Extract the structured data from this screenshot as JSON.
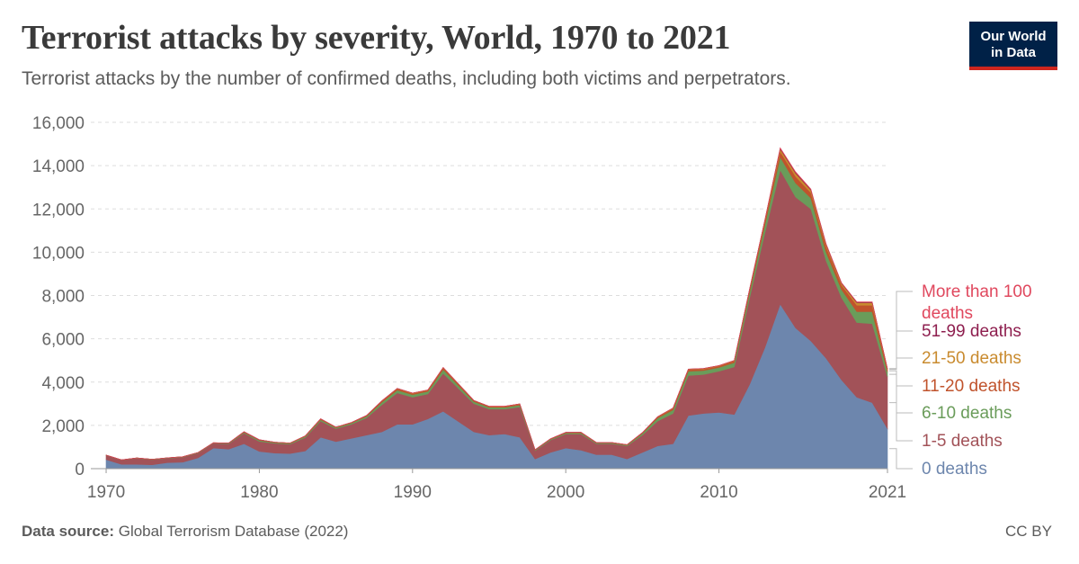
{
  "header": {
    "title": "Terrorist attacks by severity, World, 1970 to 2021",
    "subtitle": "Terrorist attacks by the number of confirmed deaths, including both victims and perpetrators."
  },
  "logo": {
    "line1": "Our World",
    "line2": "in Data"
  },
  "footer": {
    "source_label": "Data source:",
    "source_text": "Global Terrorism Database (2022)",
    "license": "CC BY"
  },
  "colors": {
    "0 deaths": "#6d86ad",
    "1-5 deaths": "#a25258",
    "6-10 deaths": "#6a9c5a",
    "11-20 deaths": "#c0532c",
    "21-50 deaths": "#c98b2f",
    "51-99 deaths": "#8e1f4f",
    "More than 100 deaths": "#e0485e"
  },
  "chart_data": {
    "type": "area",
    "stacked": true,
    "x": [
      1970,
      1971,
      1972,
      1973,
      1974,
      1975,
      1976,
      1977,
      1978,
      1979,
      1980,
      1981,
      1982,
      1983,
      1984,
      1985,
      1986,
      1987,
      1988,
      1989,
      1990,
      1991,
      1992,
      1994,
      1995,
      1996,
      1997,
      1998,
      1999,
      2000,
      2001,
      2002,
      2003,
      2004,
      2005,
      2006,
      2007,
      2008,
      2009,
      2010,
      2011,
      2012,
      2013,
      2014,
      2015,
      2016,
      2017,
      2018,
      2019,
      2020,
      2021
    ],
    "x_ticks": [
      "1970",
      "1980",
      "1990",
      "2000",
      "2010",
      "2021"
    ],
    "y_ticks": [
      "0",
      "2,000",
      "4,000",
      "6,000",
      "8,000",
      "10,000",
      "12,000",
      "14,000",
      "16,000"
    ],
    "ylim": [
      0,
      16000
    ],
    "xlim": [
      1969,
      2021
    ],
    "grid": "horizontal dashed",
    "legend_position": "right",
    "series": [
      {
        "name": "0 deaths",
        "values": [
          420,
          200,
          200,
          180,
          280,
          300,
          500,
          950,
          900,
          1150,
          800,
          720,
          700,
          820,
          1450,
          1250,
          1400,
          1550,
          1700,
          2050,
          2050,
          2300,
          2650,
          1700,
          1550,
          1600,
          1450,
          450,
          750,
          950,
          850,
          650,
          650,
          450,
          750,
          1050,
          1150,
          2450,
          2550,
          2600,
          2500,
          3900,
          5600,
          7600,
          6500,
          5900,
          5100,
          4100,
          3300,
          3050,
          1850
        ]
      },
      {
        "name": "1-5 deaths",
        "values": [
          200,
          200,
          280,
          240,
          200,
          230,
          220,
          220,
          250,
          490,
          460,
          450,
          430,
          620,
          750,
          600,
          650,
          800,
          1250,
          1450,
          1250,
          1150,
          1750,
          1300,
          1200,
          1150,
          1400,
          380,
          570,
          650,
          750,
          500,
          500,
          600,
          800,
          1150,
          1400,
          1850,
          1800,
          1900,
          2200,
          4000,
          5300,
          6200,
          6050,
          6100,
          4500,
          3800,
          3450,
          3650,
          2400
        ]
      },
      {
        "name": "6-10 deaths",
        "values": [
          5,
          5,
          10,
          10,
          15,
          15,
          20,
          20,
          25,
          40,
          50,
          35,
          35,
          50,
          65,
          45,
          55,
          70,
          120,
          130,
          120,
          120,
          180,
          100,
          85,
          85,
          90,
          30,
          40,
          50,
          55,
          40,
          40,
          40,
          80,
          140,
          170,
          200,
          180,
          180,
          200,
          250,
          380,
          600,
          650,
          500,
          400,
          380,
          500,
          550,
          220
        ]
      },
      {
        "name": "11-20 deaths",
        "values": [
          2,
          2,
          4,
          4,
          5,
          5,
          6,
          6,
          8,
          20,
          20,
          15,
          15,
          20,
          30,
          20,
          20,
          30,
          50,
          60,
          55,
          50,
          70,
          40,
          35,
          35,
          40,
          10,
          15,
          20,
          20,
          15,
          15,
          15,
          25,
          45,
          60,
          70,
          70,
          60,
          70,
          110,
          150,
          250,
          300,
          250,
          250,
          200,
          300,
          300,
          100
        ]
      },
      {
        "name": "21-50 deaths",
        "values": [
          0,
          0,
          1,
          1,
          2,
          2,
          2,
          2,
          3,
          5,
          6,
          4,
          4,
          6,
          8,
          6,
          6,
          8,
          15,
          18,
          15,
          15,
          20,
          12,
          10,
          10,
          12,
          4,
          5,
          6,
          6,
          5,
          5,
          5,
          8,
          15,
          20,
          25,
          25,
          20,
          25,
          40,
          60,
          120,
          150,
          120,
          100,
          80,
          120,
          120,
          40
        ]
      },
      {
        "name": "51-99 deaths",
        "values": [
          0,
          0,
          0,
          0,
          0,
          0,
          0,
          0,
          0,
          1,
          1,
          1,
          1,
          1,
          2,
          1,
          1,
          2,
          3,
          3,
          3,
          3,
          4,
          3,
          2,
          2,
          3,
          1,
          1,
          1,
          1,
          1,
          1,
          1,
          2,
          3,
          4,
          5,
          5,
          4,
          5,
          8,
          15,
          35,
          40,
          30,
          25,
          20,
          25,
          25,
          10
        ]
      },
      {
        "name": "More than 100 deaths",
        "values": [
          0,
          0,
          0,
          0,
          0,
          0,
          0,
          0,
          0,
          0,
          0,
          0,
          0,
          0,
          1,
          0,
          0,
          1,
          1,
          1,
          1,
          1,
          2,
          1,
          1,
          1,
          1,
          0,
          0,
          0,
          1,
          0,
          0,
          0,
          1,
          1,
          2,
          2,
          2,
          2,
          2,
          4,
          8,
          20,
          25,
          18,
          12,
          10,
          12,
          12,
          4
        ]
      }
    ]
  }
}
